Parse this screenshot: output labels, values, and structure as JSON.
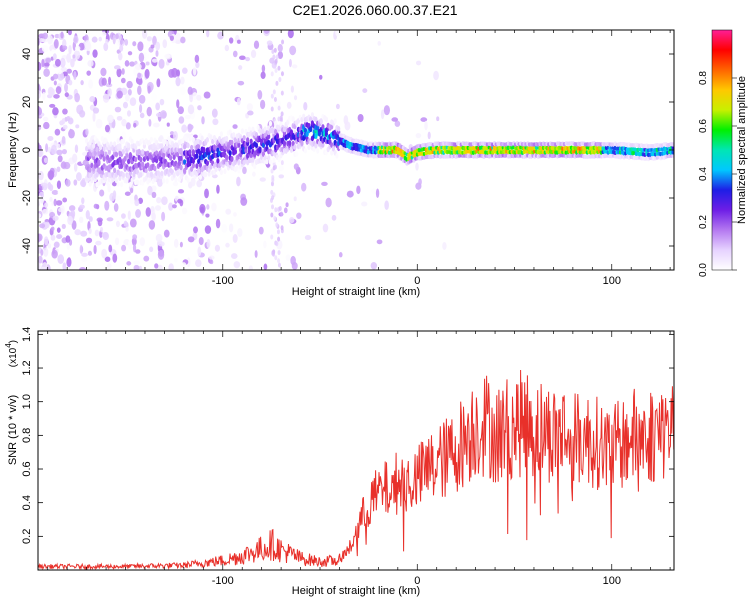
{
  "title": "C2E1.2026.060.00.37.E21",
  "chart_data": [
    {
      "type": "heatmap",
      "title": "C2E1.2026.060.00.37.E21",
      "xlabel": "Height of straight line (km)",
      "ylabel": "Frequency (Hz)",
      "xlim": [
        -195,
        132
      ],
      "ylim": [
        -50,
        50
      ],
      "xticks": [
        -100,
        0,
        100
      ],
      "yticks": [
        -40,
        -20,
        0,
        20,
        40
      ],
      "colorbar": {
        "label": "Normalized spectral amplitude",
        "range": [
          0,
          1
        ],
        "ticks": [
          "0.0",
          "0.2",
          "0.4",
          "0.6",
          "0.8"
        ],
        "colors": [
          "#ffffff",
          "#e6d2ff",
          "#b478f0",
          "#6e1ee6",
          "#1e1ee6",
          "#00c8ff",
          "#00e6b4",
          "#00f000",
          "#c8f000",
          "#ffc800",
          "#ff6400",
          "#ff0000",
          "#ff1e96"
        ]
      },
      "ridge": {
        "description_points_x": [
          -150,
          -120,
          -90,
          -70,
          -55,
          -45,
          -35,
          -25,
          -10,
          -5,
          0,
          10,
          30,
          60,
          100,
          120,
          132
        ],
        "frequency_y": [
          -5,
          -4,
          0,
          4,
          8,
          6,
          2,
          0,
          0,
          -3,
          -1,
          0,
          0,
          0,
          0,
          -1,
          0
        ]
      }
    },
    {
      "type": "line",
      "xlabel": "Height of straight line (km)",
      "ylabel": "SNR (10 * v/v)",
      "multiplier_label": "(x10",
      "multiplier_exp": "4",
      "multiplier_close": ")",
      "xlim": [
        -195,
        132
      ],
      "ylim": [
        0,
        1.42
      ],
      "xticks": [
        -100,
        0,
        100
      ],
      "yticks": [
        0.2,
        0.4,
        0.6,
        0.8,
        1.0,
        1.2,
        1.4
      ],
      "series_color": "#e8302a",
      "envelope": {
        "x": [
          -195,
          -150,
          -120,
          -100,
          -90,
          -80,
          -75,
          -70,
          -60,
          -50,
          -40,
          -35,
          -30,
          -25,
          -20,
          -15,
          -10,
          -5,
          0,
          5,
          10,
          15,
          20,
          25,
          30,
          35,
          40,
          45,
          50,
          55,
          60,
          65,
          70,
          75,
          80,
          85,
          90,
          95,
          100,
          105,
          110,
          115,
          120,
          125,
          132
        ],
        "y": [
          0.03,
          0.03,
          0.04,
          0.08,
          0.12,
          0.18,
          0.22,
          0.17,
          0.1,
          0.07,
          0.08,
          0.14,
          0.3,
          0.45,
          0.52,
          0.55,
          0.6,
          0.6,
          0.62,
          0.68,
          0.72,
          0.76,
          0.82,
          0.9,
          0.98,
          1.0,
          0.92,
          0.96,
          0.98,
          1.0,
          0.98,
          0.95,
          0.92,
          0.95,
          0.88,
          0.9,
          0.88,
          0.85,
          0.82,
          0.85,
          0.9,
          0.92,
          0.92,
          0.95,
          0.96
        ]
      }
    }
  ]
}
